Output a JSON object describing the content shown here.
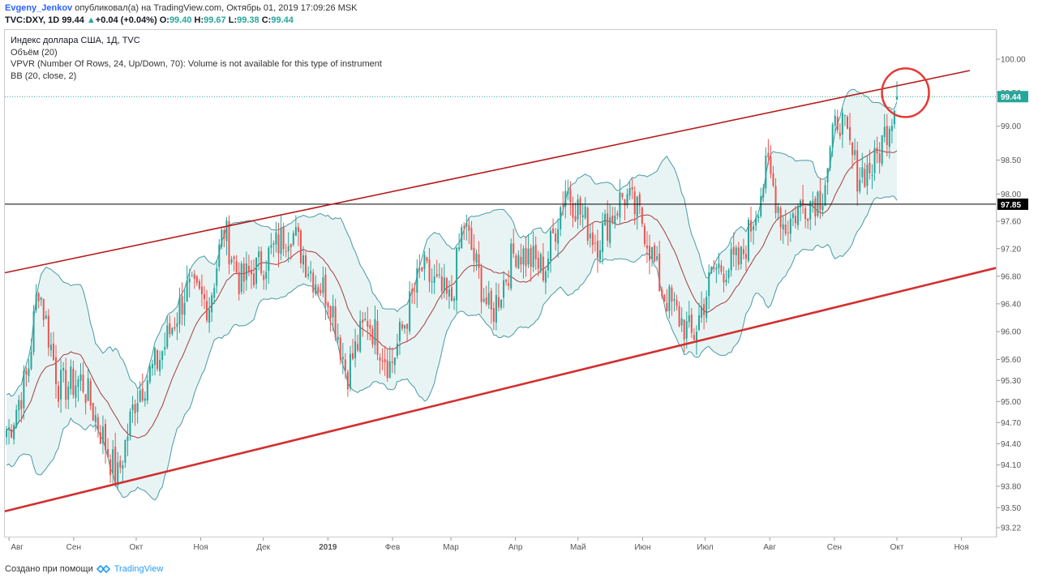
{
  "header": {
    "author": "Evgeny_Jenkov",
    "published": " опубликовал(а) на TradingView.com, Октябрь 01, 2019 17:09:26 MSK",
    "ticker": "TVC:DXY, 1D",
    "last": "99.44",
    "change_arrow": "▲",
    "change": "+0.04 (+0.04%)",
    "o_label": "O:",
    "o_val": "99.40",
    "h_label": "H:",
    "h_val": "99.67",
    "l_label": "L:",
    "l_val": "99.38",
    "c_label": "C:",
    "c_val": "99.44"
  },
  "legend": {
    "line1": "Индекс доллара США, 1Д, TVC",
    "line2": "Объём (20)",
    "line3": "VPVR (Number Of Rows, 24, Up/Down, 70): Volume is not available for this type of instrument",
    "line4": "BB (20, close, 2)"
  },
  "footer": {
    "created": "Создано при помощи",
    "brand": "TradingView",
    "logo_icon": "tradingview-logo-icon"
  },
  "chart_data": {
    "type": "candlestick",
    "title": "Индекс доллара США, 1Д, TVC",
    "y_ticks": [
      100.0,
      99.5,
      99.0,
      98.5,
      98.0,
      97.6,
      97.2,
      96.8,
      96.4,
      96.0,
      95.6,
      95.3,
      95.0,
      94.7,
      94.4,
      94.1,
      93.8,
      93.5,
      93.22
    ],
    "y_tick_labels": [
      "100.00",
      "99.50",
      "99.00",
      "98.50",
      "98.00",
      "97.60",
      "97.20",
      "96.80",
      "96.40",
      "96.00",
      "95.60",
      "95.30",
      "95.00",
      "94.70",
      "94.40",
      "94.10",
      "93.80",
      "93.50",
      "93.22"
    ],
    "y_scale": "log",
    "x_labels": [
      "Авг",
      "Сен",
      "Окт",
      "Ноя",
      "Дек",
      "2019",
      "Фев",
      "Мар",
      "Апр",
      "Май",
      "Июн",
      "Июл",
      "Авг",
      "Сен",
      "Окт",
      "Ноя"
    ],
    "x_label_bold": "2019",
    "last_price": {
      "label": "99.44",
      "value": 99.44,
      "color": "#26a69a"
    },
    "horizontal_level": {
      "label": "97.85",
      "value": 97.85,
      "color": "#000000"
    },
    "close_path": [
      [
        "2018-08-01",
        94.6
      ],
      [
        "2018-08-10",
        95.4
      ],
      [
        "2018-08-15",
        96.7
      ],
      [
        "2018-08-25",
        95.2
      ],
      [
        "2018-09-05",
        95.3
      ],
      [
        "2018-09-15",
        94.5
      ],
      [
        "2018-09-22",
        93.9
      ],
      [
        "2018-10-01",
        95.1
      ],
      [
        "2018-10-12",
        95.6
      ],
      [
        "2018-10-25",
        96.6
      ],
      [
        "2018-11-05",
        96.4
      ],
      [
        "2018-11-12",
        97.5
      ],
      [
        "2018-11-20",
        96.7
      ],
      [
        "2018-12-01",
        97.0
      ],
      [
        "2018-12-14",
        97.5
      ],
      [
        "2018-12-25",
        96.8
      ],
      [
        "2019-01-02",
        96.5
      ],
      [
        "2019-01-10",
        95.4
      ],
      [
        "2019-01-20",
        96.2
      ],
      [
        "2019-01-31",
        95.5
      ],
      [
        "2019-02-15",
        96.9
      ],
      [
        "2019-03-01",
        96.4
      ],
      [
        "2019-03-07",
        97.6
      ],
      [
        "2019-03-20",
        96.2
      ],
      [
        "2019-04-01",
        97.2
      ],
      [
        "2019-04-15",
        96.9
      ],
      [
        "2019-04-25",
        98.1
      ],
      [
        "2019-05-10",
        97.3
      ],
      [
        "2019-05-23",
        98.0
      ],
      [
        "2019-06-01",
        97.6
      ],
      [
        "2019-06-10",
        96.6
      ],
      [
        "2019-06-25",
        95.9
      ],
      [
        "2019-07-05",
        96.9
      ],
      [
        "2019-07-18",
        97.0
      ],
      [
        "2019-07-31",
        98.4
      ],
      [
        "2019-08-08",
        97.5
      ],
      [
        "2019-08-15",
        97.8
      ],
      [
        "2019-08-26",
        98.0
      ],
      [
        "2019-09-03",
        99.2
      ],
      [
        "2019-09-12",
        98.3
      ],
      [
        "2019-09-20",
        98.4
      ],
      [
        "2019-10-01",
        99.44
      ]
    ],
    "trend_lines": [
      {
        "color": "#b71c1c",
        "from": [
          "2018-07-30",
          96.85
        ],
        "to": [
          "2019-11-05",
          99.83
        ]
      },
      {
        "color": "#d32f2f",
        "from": [
          "2018-07-30",
          93.45
        ],
        "to": [
          "2019-12-05",
          96.92
        ]
      }
    ],
    "highlight_circle": {
      "color": "#e53935",
      "center": [
        "2019-10-02",
        99.45
      ]
    },
    "colors": {
      "up": "#26a69a",
      "down": "#ef5350",
      "bb_band": "#4a9aa5",
      "bb_fill": "#e8f4f4",
      "bb_basis": "#a53c3c"
    }
  }
}
